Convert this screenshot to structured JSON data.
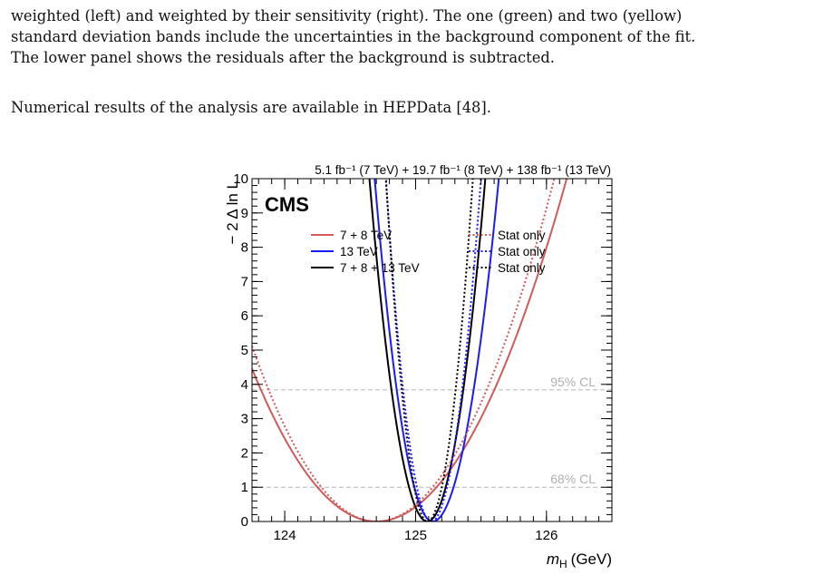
{
  "caption": {
    "line1": "weighted (left) and weighted by their sensitivity (right).  The one (green) and two (yellow)",
    "line2": "standard deviation bands include the uncertainties in the background component of the fit.",
    "line3": "The lower panel shows the residuals after the background is subtracted."
  },
  "paragraph": "Numerical results of the analysis are available in HEPData [48].",
  "chart_data": {
    "type": "line",
    "title": "5.1 fb⁻¹ (7 TeV) + 19.7 fb⁻¹ (8 TeV) + 138 fb⁻¹ (13 TeV)",
    "experiment_label": "CMS",
    "xlabel_symbol": "m",
    "xlabel_subscript": "H",
    "xlabel_unit": "(GeV)",
    "ylabel": "− 2 Δ ln L",
    "xlim": [
      123.75,
      126.5
    ],
    "ylim": [
      0,
      10
    ],
    "x_ticks": [
      124,
      125,
      126
    ],
    "y_ticks": [
      0,
      1,
      2,
      3,
      4,
      5,
      6,
      7,
      8,
      9,
      10
    ],
    "reference_lines": [
      {
        "label": "95% CL",
        "y": 3.84
      },
      {
        "label": "68% CL",
        "y": 1.0
      }
    ],
    "series": [
      {
        "name": "7 + 8 TeV",
        "style": "solid",
        "color": "#d05a5a",
        "minimum": 124.7,
        "sigma_low": 0.45,
        "sigma_high": 0.46
      },
      {
        "name": "13 TeV",
        "style": "solid",
        "color": "#1a1aff",
        "minimum": 125.13,
        "sigma_low": 0.14,
        "sigma_high": 0.16
      },
      {
        "name": "7 + 8 + 13 TeV",
        "style": "solid",
        "color": "#000000",
        "minimum": 125.09,
        "sigma_low": 0.14,
        "sigma_high": 0.14
      },
      {
        "name": "Stat only",
        "style": "dotted",
        "color": "#d05a5a",
        "minimum": 124.7,
        "sigma_low": 0.42,
        "sigma_high": 0.43
      },
      {
        "name": "Stat only",
        "style": "dotted",
        "color": "#1a1aff",
        "minimum": 125.12,
        "sigma_low": 0.11,
        "sigma_high": 0.12
      },
      {
        "name": "Stat only",
        "style": "dotted",
        "color": "#000000",
        "minimum": 125.09,
        "sigma_low": 0.1,
        "sigma_high": 0.11
      }
    ]
  }
}
